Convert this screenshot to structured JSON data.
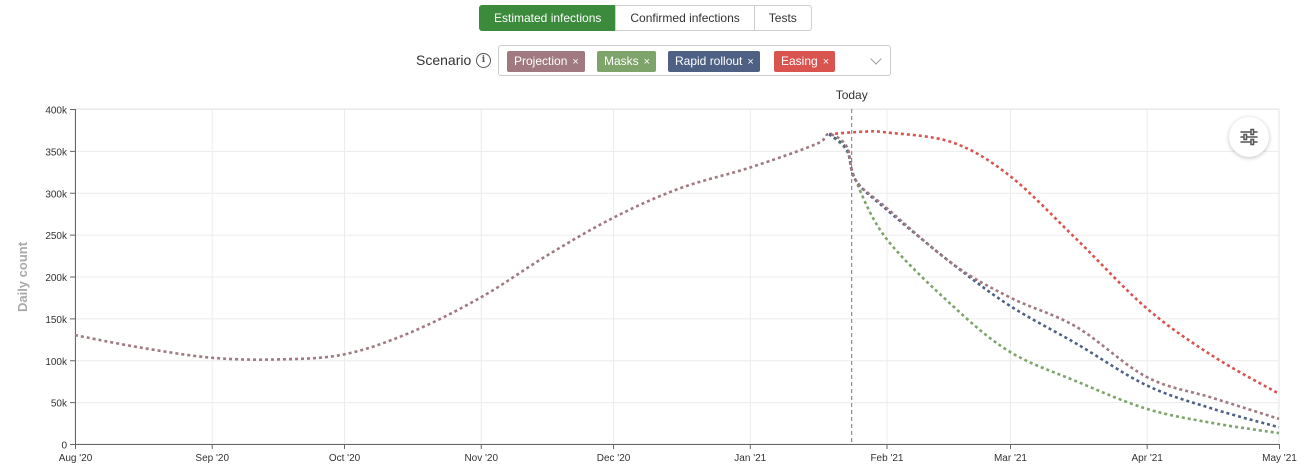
{
  "tabs": [
    {
      "label": "Estimated infections",
      "active": true
    },
    {
      "label": "Confirmed infections",
      "active": false
    },
    {
      "label": "Tests",
      "active": false
    }
  ],
  "scenario": {
    "label": "Scenario",
    "info_icon": "info-icon",
    "chips": [
      {
        "label": "Projection",
        "color": "#a07a80",
        "remove": "×"
      },
      {
        "label": "Masks",
        "color": "#7ea36b",
        "remove": "×"
      },
      {
        "label": "Rapid rollout",
        "color": "#4e6185",
        "remove": "×"
      },
      {
        "label": "Easing",
        "color": "#d9534f",
        "remove": "×"
      }
    ],
    "dropdown_icon": "chevron-down-icon"
  },
  "settings_icon": "sliders-icon",
  "chart_data": {
    "type": "line",
    "ylabel": "Daily count",
    "xlabel": "",
    "ylim": [
      0,
      400000
    ],
    "yticks": [
      0,
      50000,
      100000,
      150000,
      200000,
      250000,
      300000,
      350000,
      400000
    ],
    "ytick_labels": [
      "0",
      "50k",
      "100k",
      "150k",
      "200k",
      "250k",
      "300k",
      "350k",
      "400k"
    ],
    "xlim": [
      "2020-08-01",
      "2021-05-01"
    ],
    "xticks": [
      "2020-08-01",
      "2020-09-01",
      "2020-10-01",
      "2020-11-01",
      "2020-12-01",
      "2021-01-01",
      "2021-02-01",
      "2021-03-01",
      "2021-04-01",
      "2021-05-01"
    ],
    "xtick_labels": [
      "Aug '20",
      "Sep '20",
      "Oct '20",
      "Nov '20",
      "Dec '20",
      "Jan '21",
      "Feb '21",
      "Mar '21",
      "Apr '21",
      "May '21"
    ],
    "grid": true,
    "line_style": "dotted",
    "today": {
      "date": "2021-01-24",
      "label": "Today"
    },
    "series": [
      {
        "name": "Projection",
        "color": "#a07a80",
        "points": [
          [
            "2020-08-01",
            130000
          ],
          [
            "2020-08-16",
            115000
          ],
          [
            "2020-09-01",
            103000
          ],
          [
            "2020-09-16",
            101000
          ],
          [
            "2020-10-01",
            107000
          ],
          [
            "2020-10-16",
            133000
          ],
          [
            "2020-11-01",
            175000
          ],
          [
            "2020-11-16",
            225000
          ],
          [
            "2020-12-01",
            270000
          ],
          [
            "2020-12-16",
            305000
          ],
          [
            "2021-01-01",
            330000
          ],
          [
            "2021-01-16",
            358000
          ],
          [
            "2021-01-19",
            370000
          ],
          [
            "2021-01-23",
            355000
          ],
          [
            "2021-01-25",
            315000
          ],
          [
            "2021-02-01",
            282000
          ],
          [
            "2021-02-16",
            215000
          ],
          [
            "2021-03-01",
            175000
          ],
          [
            "2021-03-16",
            140000
          ],
          [
            "2021-04-01",
            80000
          ],
          [
            "2021-04-16",
            55000
          ],
          [
            "2021-05-01",
            30000
          ]
        ]
      },
      {
        "name": "Masks",
        "color": "#7ea36b",
        "points": [
          [
            "2021-01-19",
            370000
          ],
          [
            "2021-01-23",
            350000
          ],
          [
            "2021-01-25",
            315000
          ],
          [
            "2021-02-01",
            245000
          ],
          [
            "2021-02-16",
            165000
          ],
          [
            "2021-03-01",
            110000
          ],
          [
            "2021-03-16",
            75000
          ],
          [
            "2021-04-01",
            42000
          ],
          [
            "2021-04-16",
            25000
          ],
          [
            "2021-05-01",
            13000
          ]
        ]
      },
      {
        "name": "Rapid rollout",
        "color": "#4e6185",
        "points": [
          [
            "2021-01-19",
            370000
          ],
          [
            "2021-01-23",
            352000
          ],
          [
            "2021-01-25",
            315000
          ],
          [
            "2021-02-01",
            280000
          ],
          [
            "2021-02-16",
            215000
          ],
          [
            "2021-03-01",
            165000
          ],
          [
            "2021-03-16",
            120000
          ],
          [
            "2021-04-01",
            70000
          ],
          [
            "2021-04-16",
            42000
          ],
          [
            "2021-05-01",
            20000
          ]
        ]
      },
      {
        "name": "Easing",
        "color": "#d9534f",
        "points": [
          [
            "2021-01-19",
            370000
          ],
          [
            "2021-01-27",
            373000
          ],
          [
            "2021-02-01",
            372000
          ],
          [
            "2021-02-16",
            360000
          ],
          [
            "2021-03-01",
            320000
          ],
          [
            "2021-03-16",
            245000
          ],
          [
            "2021-04-01",
            162000
          ],
          [
            "2021-04-16",
            105000
          ],
          [
            "2021-05-01",
            60000
          ]
        ]
      }
    ]
  }
}
